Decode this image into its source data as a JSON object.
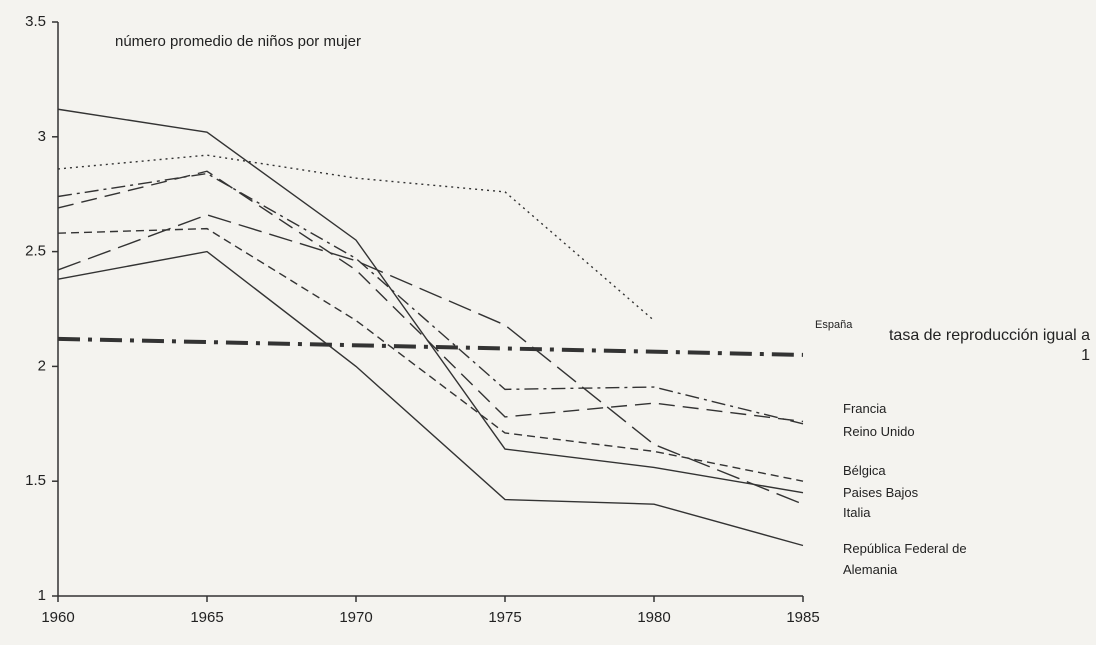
{
  "chart_data": {
    "type": "line",
    "y_label": "número promedio de niños por mujer",
    "x": [
      1960,
      1965,
      1970,
      1975,
      1980,
      1985
    ],
    "xlim": [
      1960,
      1985
    ],
    "xticks": [
      1960,
      1965,
      1970,
      1975,
      1980,
      1985
    ],
    "ylim": [
      1,
      3.5
    ],
    "yticks": [
      1,
      1.5,
      2,
      2.5,
      3,
      3.5
    ],
    "grid": false,
    "series": [
      {
        "name": "España",
        "color": "#333333",
        "dash": "2 4",
        "values": [
          2.86,
          2.92,
          2.82,
          2.76,
          2.2,
          null
        ]
      },
      {
        "name": "Francia",
        "color": "#333333",
        "dash": "14 5 3 5",
        "values": [
          2.74,
          2.84,
          2.47,
          1.9,
          1.91,
          1.75
        ]
      },
      {
        "name": "Reino Unido",
        "color": "#333333",
        "dash": "16 8",
        "values": [
          2.69,
          2.85,
          2.42,
          1.78,
          1.84,
          1.76
        ]
      },
      {
        "name": "Bélgica",
        "color": "#333333",
        "dash": "8 5",
        "values": [
          2.58,
          2.6,
          2.2,
          1.71,
          1.63,
          1.5
        ]
      },
      {
        "name": "Paises Bajos",
        "color": "#333333",
        "dash": "24 8",
        "values": [
          2.42,
          2.66,
          2.46,
          2.18,
          1.66,
          1.4
        ]
      },
      {
        "name": "Italia",
        "color": "#333333",
        "dash": "",
        "values": [
          3.12,
          3.02,
          2.55,
          1.64,
          1.56,
          1.45
        ]
      },
      {
        "name": "República Federal de Alemania",
        "color": "#333333",
        "dash": "",
        "values": [
          2.38,
          2.5,
          2.0,
          1.42,
          1.4,
          1.22
        ]
      }
    ],
    "reference": {
      "label": "tasa de reproducción igual a 1",
      "color": "#333333",
      "dash": "22 8 4 8",
      "x": [
        1960,
        1985
      ],
      "values": [
        2.12,
        2.05
      ]
    }
  }
}
